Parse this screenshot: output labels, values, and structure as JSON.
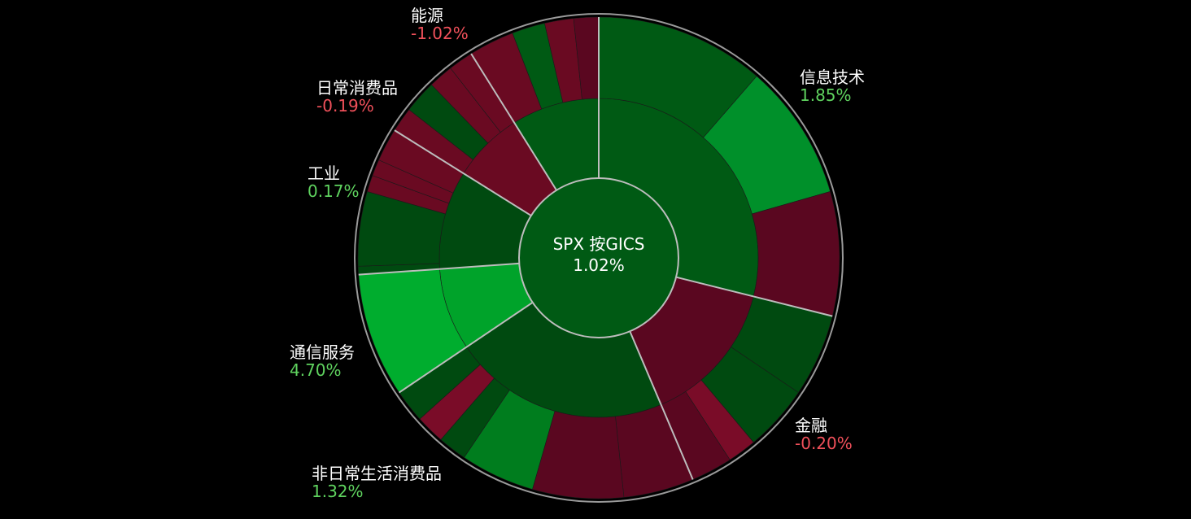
{
  "chart_data": {
    "type": "sunburst",
    "center": {
      "title": "SPX 按GICS",
      "value": "1.02%"
    },
    "sectors": [
      {
        "key": "it",
        "name": "信息技术",
        "change": "1.85%",
        "sign": "pos"
      },
      {
        "key": "fin",
        "name": "金融",
        "change": "-0.20%",
        "sign": "neg"
      },
      {
        "key": "cd",
        "name": "非日常生活消费品",
        "change": "1.32%",
        "sign": "pos"
      },
      {
        "key": "comm",
        "name": "通信服务",
        "change": "4.70%",
        "sign": "pos"
      },
      {
        "key": "ind",
        "name": "工业",
        "change": "0.17%",
        "sign": "pos"
      },
      {
        "key": "cs",
        "name": "日常消费品",
        "change": "-0.19%",
        "sign": "neg"
      },
      {
        "key": "en",
        "name": "能源",
        "change": "-1.02%",
        "sign": "neg"
      }
    ],
    "colors": {
      "background": "#000000",
      "positive_text": "#5fd35f",
      "negative_text": "#f0505a",
      "divider": "#b8b8b8"
    }
  }
}
